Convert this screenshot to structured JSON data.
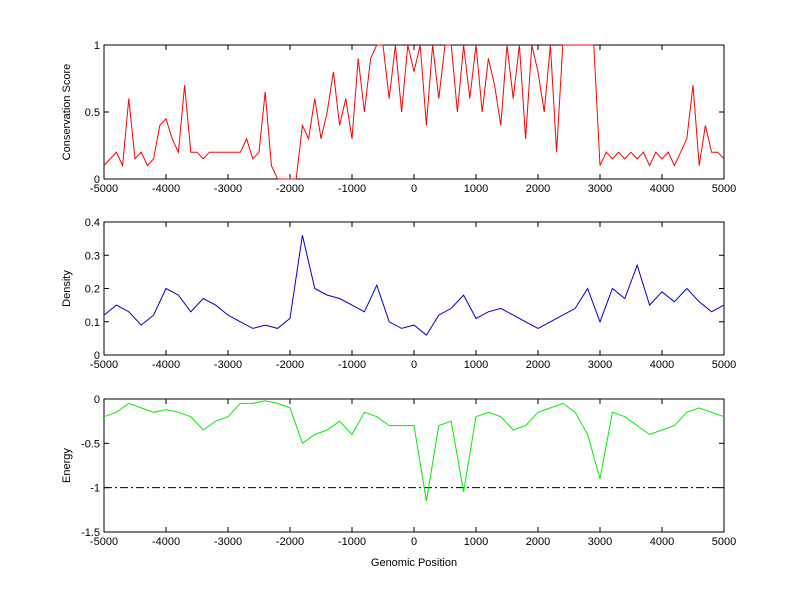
{
  "chart_data": [
    {
      "type": "line",
      "ylabel": "Conservation Score",
      "x": [
        -5000,
        -4900,
        -4800,
        -4700,
        -4600,
        -4500,
        -4400,
        -4300,
        -4200,
        -4100,
        -4000,
        -3900,
        -3800,
        -3700,
        -3600,
        -3500,
        -3400,
        -3300,
        -3200,
        -3100,
        -3000,
        -2900,
        -2800,
        -2700,
        -2600,
        -2500,
        -2400,
        -2300,
        -2200,
        -2100,
        -2000,
        -1900,
        -1800,
        -1700,
        -1600,
        -1500,
        -1400,
        -1300,
        -1200,
        -1100,
        -1000,
        -900,
        -800,
        -700,
        -600,
        -500,
        -400,
        -300,
        -200,
        -100,
        0,
        100,
        200,
        300,
        400,
        500,
        600,
        700,
        800,
        900,
        1000,
        1100,
        1200,
        1300,
        1400,
        1500,
        1600,
        1700,
        1800,
        1900,
        2000,
        2100,
        2200,
        2300,
        2400,
        2500,
        2600,
        2700,
        2800,
        2900,
        3000,
        3100,
        3200,
        3300,
        3400,
        3500,
        3600,
        3700,
        3800,
        3900,
        4000,
        4100,
        4200,
        4300,
        4400,
        4500,
        4600,
        4700,
        4800,
        4900,
        5000
      ],
      "series": [
        {
          "color": "#ff0000",
          "values": [
            0.1,
            0.15,
            0.2,
            0.1,
            0.6,
            0.15,
            0.2,
            0.1,
            0.15,
            0.4,
            0.45,
            0.3,
            0.2,
            0.7,
            0.2,
            0.2,
            0.15,
            0.2,
            0.2,
            0.2,
            0.2,
            0.2,
            0.2,
            0.3,
            0.15,
            0.2,
            0.65,
            0.1,
            0,
            0,
            0,
            0,
            0.4,
            0.3,
            0.6,
            0.3,
            0.5,
            0.8,
            0.4,
            0.6,
            0.3,
            0.9,
            0.5,
            0.9,
            1,
            1,
            0.6,
            1,
            0.5,
            1,
            0.8,
            1,
            0.4,
            1,
            0.6,
            1,
            1,
            0.5,
            1,
            0.6,
            1,
            0.5,
            0.9,
            0.7,
            0.4,
            1,
            0.6,
            1,
            0.3,
            1,
            0.8,
            0.5,
            1,
            0.2,
            1,
            1,
            1,
            1,
            1,
            1,
            0.1,
            0.2,
            0.15,
            0.2,
            0.15,
            0.2,
            0.15,
            0.2,
            0.1,
            0.2,
            0.15,
            0.2,
            0.1,
            0.2,
            0.3,
            0.7,
            0.1,
            0.4,
            0.2,
            0.2,
            0.15
          ]
        }
      ],
      "xlim": [
        -5000,
        5000
      ],
      "xticks": [
        -5000,
        -4000,
        -3000,
        -2000,
        -1000,
        0,
        1000,
        2000,
        3000,
        4000,
        5000
      ],
      "ylim": [
        0,
        1
      ],
      "yticks": [
        0,
        0.5,
        1
      ]
    },
    {
      "type": "line",
      "ylabel": "Density",
      "x": [
        -5000,
        -4800,
        -4600,
        -4400,
        -4200,
        -4000,
        -3800,
        -3600,
        -3400,
        -3200,
        -3000,
        -2800,
        -2600,
        -2400,
        -2200,
        -2000,
        -1800,
        -1600,
        -1400,
        -1200,
        -1000,
        -800,
        -600,
        -400,
        -200,
        0,
        200,
        400,
        600,
        800,
        1000,
        1200,
        1400,
        1600,
        1800,
        2000,
        2200,
        2400,
        2600,
        2800,
        3000,
        3200,
        3400,
        3600,
        3800,
        4000,
        4200,
        4400,
        4600,
        4800,
        5000
      ],
      "series": [
        {
          "color": "#0000cc",
          "values": [
            0.12,
            0.15,
            0.13,
            0.09,
            0.12,
            0.2,
            0.18,
            0.13,
            0.17,
            0.15,
            0.12,
            0.1,
            0.08,
            0.09,
            0.08,
            0.11,
            0.36,
            0.2,
            0.18,
            0.17,
            0.15,
            0.13,
            0.21,
            0.1,
            0.08,
            0.09,
            0.06,
            0.12,
            0.14,
            0.18,
            0.11,
            0.13,
            0.14,
            0.12,
            0.1,
            0.08,
            0.1,
            0.12,
            0.14,
            0.2,
            0.1,
            0.2,
            0.17,
            0.27,
            0.15,
            0.19,
            0.16,
            0.2,
            0.16,
            0.13,
            0.15
          ]
        }
      ],
      "xlim": [
        -5000,
        5000
      ],
      "xticks": [
        -5000,
        -4000,
        -3000,
        -2000,
        -1000,
        0,
        1000,
        2000,
        3000,
        4000,
        5000
      ],
      "ylim": [
        0,
        0.4
      ],
      "yticks": [
        0,
        0.1,
        0.2,
        0.3,
        0.4
      ]
    },
    {
      "type": "line",
      "ylabel": "Energy",
      "xlabel": "Genomic Position",
      "x": [
        -5000,
        -4800,
        -4600,
        -4400,
        -4200,
        -4000,
        -3800,
        -3600,
        -3400,
        -3200,
        -3000,
        -2800,
        -2600,
        -2400,
        -2200,
        -2000,
        -1800,
        -1600,
        -1400,
        -1200,
        -1000,
        -800,
        -600,
        -400,
        -200,
        0,
        200,
        400,
        600,
        800,
        1000,
        1200,
        1400,
        1600,
        1800,
        2000,
        2200,
        2400,
        2600,
        2800,
        3000,
        3200,
        3400,
        3600,
        3800,
        4000,
        4200,
        4400,
        4600,
        4800,
        5000
      ],
      "series": [
        {
          "color": "#00ee00",
          "values": [
            -0.2,
            -0.15,
            -0.05,
            -0.1,
            -0.15,
            -0.12,
            -0.15,
            -0.2,
            -0.35,
            -0.25,
            -0.2,
            -0.05,
            -0.05,
            -0.02,
            -0.05,
            -0.1,
            -0.5,
            -0.4,
            -0.35,
            -0.25,
            -0.4,
            -0.15,
            -0.2,
            -0.3,
            -0.3,
            -0.3,
            -1.15,
            -0.3,
            -0.25,
            -1.05,
            -0.2,
            -0.15,
            -0.2,
            -0.35,
            -0.3,
            -0.15,
            -0.1,
            -0.05,
            -0.15,
            -0.4,
            -0.9,
            -0.15,
            -0.2,
            -0.3,
            -0.4,
            -0.35,
            -0.3,
            -0.15,
            -0.1,
            -0.15,
            -0.2
          ]
        }
      ],
      "hline": -1,
      "xlim": [
        -5000,
        5000
      ],
      "xticks": [
        -5000,
        -4000,
        -3000,
        -2000,
        -1000,
        0,
        1000,
        2000,
        3000,
        4000,
        5000
      ],
      "ylim": [
        -1.5,
        0
      ],
      "yticks": [
        -1.5,
        -1,
        -0.5,
        0
      ]
    }
  ]
}
